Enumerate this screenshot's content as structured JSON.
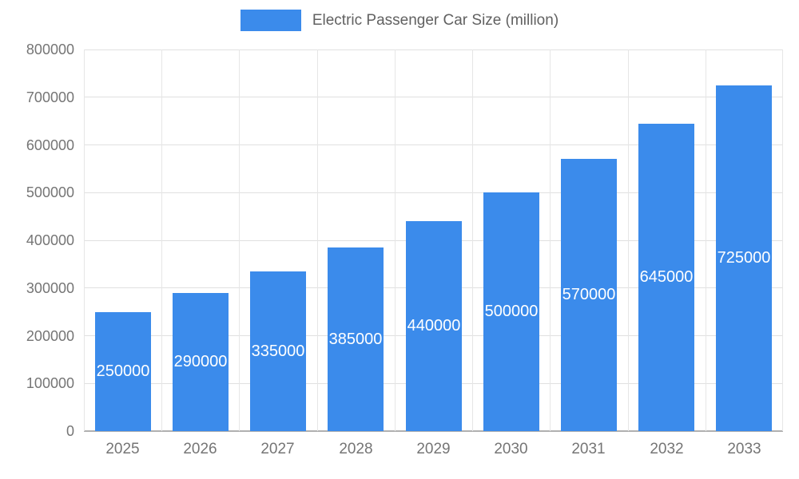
{
  "chart_data": {
    "type": "bar",
    "title": "Electric Passenger Car Size (million)",
    "categories": [
      "2025",
      "2026",
      "2027",
      "2028",
      "2029",
      "2030",
      "2031",
      "2032",
      "2033"
    ],
    "values": [
      250000,
      290000,
      335000,
      385000,
      440000,
      500000,
      570000,
      645000,
      725000
    ],
    "xlabel": "",
    "ylabel": "",
    "ylim": [
      0,
      800000
    ],
    "ytick_step": 100000,
    "ytick_labels": [
      "0",
      "100000",
      "200000",
      "300000",
      "400000",
      "500000",
      "600000",
      "700000",
      "800000"
    ],
    "grid": true,
    "legend_position": "top",
    "bar_color": "#3b8beb",
    "value_label_color": "#ffffff",
    "gridline_color": "#e0e0e0",
    "axis_text_color": "#757575",
    "title_color": "#616161"
  }
}
